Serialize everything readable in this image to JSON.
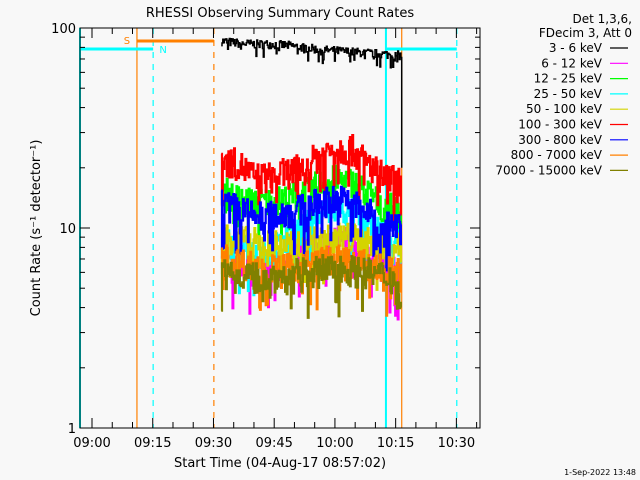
{
  "chart_data": {
    "type": "line",
    "title": "RHESSI Observing Summary Count Rates",
    "xlabel": "Start Time (04-Aug-17 08:57:02)",
    "ylabel": "Count Rate (s⁻¹ detector⁻¹)",
    "yscale": "log",
    "ylim": [
      1,
      100
    ],
    "xlim": [
      "08:57:02",
      "10:35:50"
    ],
    "x_tick_labels": [
      "09:00",
      "09:15",
      "09:30",
      "09:45",
      "10:00",
      "10:15",
      "10:30"
    ],
    "y_tick_labels": [
      "1",
      "10",
      "100"
    ],
    "legend_header": [
      "Det 1,3,6,",
      "FDecim 3, Att 0"
    ],
    "legend_position": "outside-right",
    "x": [
      "09:32",
      "09:36",
      "09:40",
      "09:44",
      "09:48",
      "09:52",
      "09:56",
      "10:00",
      "10:04",
      "10:08",
      "10:12",
      "10:16"
    ],
    "series": [
      {
        "name": "3 - 6 keV",
        "color": "#000000",
        "values": [
          86,
          84,
          83,
          83,
          82,
          80,
          78,
          77,
          76,
          75,
          74,
          73
        ]
      },
      {
        "name": "6 - 12 keV",
        "color": "#ff00ff",
        "values": [
          6.5,
          6.3,
          6.0,
          6.2,
          6.8,
          7.5,
          8.3,
          8.8,
          8.5,
          7.5,
          6.5,
          6.0
        ]
      },
      {
        "name": "12 - 25 keV",
        "color": "#00ff00",
        "values": [
          15.5,
          14,
          13.5,
          13.5,
          14,
          15,
          16.5,
          17.5,
          17,
          15,
          13,
          12
        ]
      },
      {
        "name": "25 - 50 keV",
        "color": "#00ffff",
        "values": [
          8.5,
          8,
          7.5,
          7.8,
          8.5,
          10,
          11.5,
          12.5,
          12,
          10.5,
          9,
          8.5
        ]
      },
      {
        "name": "50 - 100 keV",
        "color": "#d4d400",
        "values": [
          9.2,
          8.8,
          8.5,
          8.3,
          8.3,
          8.5,
          9,
          9.2,
          9,
          8.5,
          8,
          8
        ]
      },
      {
        "name": "100 - 300 keV",
        "color": "#ff0000",
        "values": [
          22,
          21,
          18,
          18,
          19,
          20,
          23,
          25,
          25,
          21,
          18,
          17
        ]
      },
      {
        "name": "300 - 800 keV",
        "color": "#0000ff",
        "values": [
          13.5,
          12.5,
          11.5,
          11.5,
          12,
          12.5,
          13.5,
          14,
          13.5,
          12,
          10.5,
          10
        ]
      },
      {
        "name": "800 - 7000 keV",
        "color": "#ff8000",
        "values": [
          7.2,
          6.8,
          6.5,
          6.3,
          6.3,
          6.5,
          6.8,
          7,
          6.8,
          6.5,
          6.2,
          6
        ]
      },
      {
        "name": "7000 - 15000 keV",
        "color": "#808000",
        "values": [
          6.2,
          6,
          5.8,
          5.8,
          5.8,
          6,
          6.2,
          6.3,
          6.2,
          6,
          5.8,
          5.5
        ]
      }
    ],
    "annotations": {
      "saa": {
        "label": "S",
        "color": "#ff8000",
        "start": "09:11:06",
        "end": "09:30:06"
      },
      "night": [
        {
          "label": "N",
          "color": "#00ffff",
          "start": "08:57:02",
          "end": "09:15:06"
        },
        {
          "color": "#00ffff",
          "start": "10:12:36",
          "end": "10:30:06"
        }
      ],
      "vlines": [
        {
          "time": "08:57:02",
          "color": "#00ffff",
          "style": "solid"
        },
        {
          "time": "09:11:06",
          "color": "#ff8000",
          "style": "solid"
        },
        {
          "time": "09:15:06",
          "color": "#00ffff",
          "style": "dashed"
        },
        {
          "time": "09:30:06",
          "color": "#ff8000",
          "style": "dashed"
        },
        {
          "time": "10:12:36",
          "color": "#00ffff",
          "style": "solid"
        },
        {
          "time": "10:16:30",
          "color": "#ff8000",
          "style": "solid"
        },
        {
          "time": "10:30:06",
          "color": "#00ffff",
          "style": "dashed"
        }
      ]
    }
  },
  "footer_timestamp": "1-Sep-2022 13:48"
}
